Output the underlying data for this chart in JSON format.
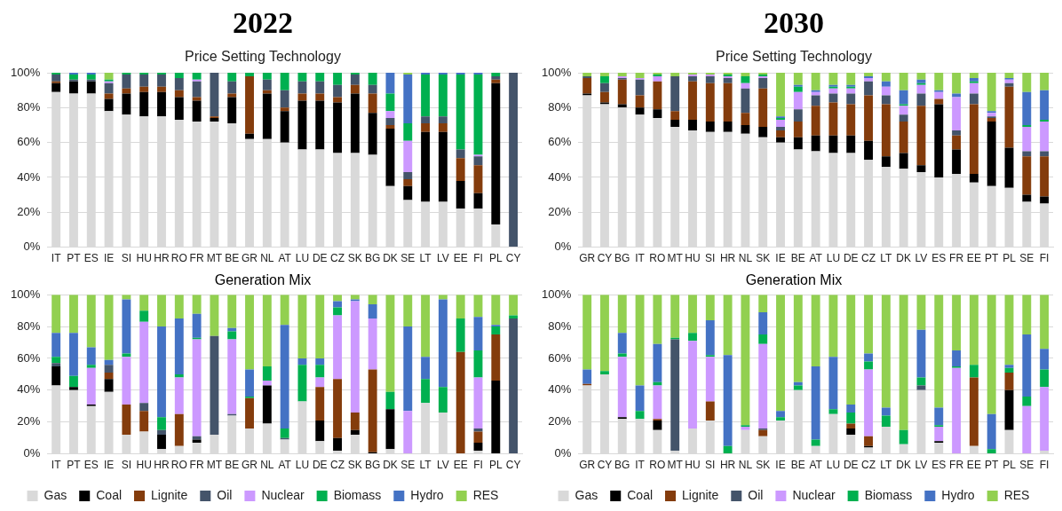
{
  "chart_data": [
    {
      "type": "bar",
      "stacked": true,
      "title": "2022",
      "subtitle": "Price Setting Technology",
      "legend": false,
      "grid": "y",
      "ylim": [
        0,
        100
      ],
      "yticks": [
        {
          "value": 0,
          "label": "0%"
        },
        {
          "value": 20,
          "label": "20%"
        },
        {
          "value": 40,
          "label": "40%"
        },
        {
          "value": 60,
          "label": "60%"
        },
        {
          "value": 80,
          "label": "80%"
        },
        {
          "value": 100,
          "label": "100%"
        }
      ],
      "categories": [
        "IT",
        "PT",
        "ES",
        "IE",
        "SI",
        "HU",
        "HR",
        "RO",
        "FR",
        "MT",
        "BE",
        "GR",
        "NL",
        "AT",
        "LU",
        "DE",
        "CZ",
        "SK",
        "BG",
        "DK",
        "SE",
        "LT",
        "LV",
        "EE",
        "FI",
        "PL",
        "CY"
      ],
      "series": [
        {
          "color": "#d9d9d9",
          "values": [
            89,
            88,
            88,
            78,
            76,
            75,
            75,
            73,
            72,
            72,
            71,
            62,
            62,
            60,
            56,
            56,
            54,
            54,
            53,
            35,
            27,
            26,
            26,
            22,
            22,
            13,
            0
          ]
        },
        {
          "color": "#000000",
          "values": [
            5,
            7,
            7,
            7,
            12,
            14,
            14,
            13,
            12,
            2,
            15,
            3,
            26,
            18,
            28,
            28,
            29,
            34,
            24,
            33,
            8,
            40,
            40,
            16,
            9,
            81,
            0
          ]
        },
        {
          "color": "#843c0c",
          "values": [
            1,
            0,
            0,
            3,
            3,
            3,
            3,
            4,
            2,
            1,
            2,
            33,
            2,
            2,
            4,
            4,
            3,
            5,
            11,
            2,
            4,
            5,
            5,
            13,
            16,
            2,
            0
          ]
        },
        {
          "color": "#44546a",
          "values": [
            4,
            1,
            1,
            6,
            8,
            7,
            7,
            7,
            9,
            25,
            7,
            0,
            6,
            10,
            7,
            7,
            7,
            6,
            5,
            4,
            4,
            4,
            4,
            5,
            5,
            2,
            100
          ]
        },
        {
          "color": "#cc99ff",
          "values": [
            0,
            0,
            0,
            1,
            0,
            0,
            0,
            0,
            1,
            0,
            0,
            0,
            0,
            0,
            0,
            0,
            0,
            0,
            0,
            4,
            18,
            0,
            0,
            0,
            1,
            0,
            0
          ]
        },
        {
          "color": "#00b050",
          "values": [
            1,
            3,
            3,
            1,
            1,
            1,
            1,
            3,
            4,
            0,
            5,
            2,
            4,
            10,
            5,
            5,
            7,
            1,
            7,
            10,
            10,
            24,
            24,
            43,
            46,
            2,
            0
          ]
        },
        {
          "color": "#4472c4",
          "values": [
            0,
            1,
            1,
            0,
            0,
            0,
            0,
            0,
            0,
            0,
            0,
            0,
            0,
            0,
            0,
            0,
            0,
            0,
            0,
            12,
            28,
            1,
            1,
            1,
            1,
            0,
            0
          ]
        },
        {
          "color": "#92d050",
          "values": [
            0,
            0,
            0,
            4,
            0,
            0,
            0,
            0,
            0,
            0,
            0,
            0,
            0,
            0,
            0,
            0,
            0,
            0,
            0,
            0,
            1,
            0,
            0,
            0,
            0,
            0,
            0
          ]
        }
      ]
    },
    {
      "type": "bar",
      "stacked": true,
      "title": "2030",
      "subtitle": "Price Setting Technology",
      "legend": false,
      "grid": "y",
      "ylim": [
        0,
        100
      ],
      "yticks": [
        {
          "value": 0,
          "label": "0%"
        },
        {
          "value": 20,
          "label": "20%"
        },
        {
          "value": 40,
          "label": "40%"
        },
        {
          "value": 60,
          "label": "60%"
        },
        {
          "value": 80,
          "label": "80%"
        },
        {
          "value": 100,
          "label": "100%"
        }
      ],
      "categories": [
        "GR",
        "CY",
        "BG",
        "IT",
        "RO",
        "MT",
        "HU",
        "SI",
        "HR",
        "NL",
        "SK",
        "IE",
        "BE",
        "AT",
        "LU",
        "DE",
        "CZ",
        "LT",
        "DK",
        "LV",
        "ES",
        "FR",
        "EE",
        "PT",
        "PL",
        "SE",
        "FI"
      ],
      "series": [
        {
          "color": "#d9d9d9",
          "values": [
            87,
            82,
            80,
            76,
            74,
            69,
            67,
            66,
            66,
            65,
            63,
            60,
            56,
            55,
            54,
            54,
            50,
            46,
            45,
            43,
            40,
            42,
            37,
            35,
            34,
            26,
            25
          ]
        },
        {
          "color": "#000000",
          "values": [
            1,
            1,
            2,
            4,
            5,
            4,
            6,
            6,
            6,
            5,
            6,
            3,
            7,
            9,
            10,
            10,
            11,
            6,
            9,
            4,
            42,
            14,
            5,
            37,
            23,
            4,
            4
          ]
        },
        {
          "color": "#843c0c",
          "values": [
            9,
            6,
            14,
            7,
            16,
            5,
            22,
            22,
            22,
            7,
            22,
            4,
            9,
            17,
            19,
            18,
            26,
            30,
            18,
            34,
            3,
            8,
            40,
            2,
            35,
            22,
            23
          ]
        },
        {
          "color": "#44546a",
          "values": [
            1,
            5,
            1,
            9,
            0,
            20,
            3,
            4,
            3,
            14,
            6,
            2,
            7,
            6,
            5,
            6,
            8,
            5,
            4,
            7,
            0,
            3,
            6,
            1,
            2,
            3,
            3
          ]
        },
        {
          "color": "#cc99ff",
          "values": [
            0,
            0,
            1,
            1,
            3,
            0,
            1,
            1,
            1,
            3,
            1,
            4,
            10,
            2,
            3,
            3,
            2,
            5,
            5,
            5,
            4,
            19,
            6,
            2,
            2,
            14,
            17
          ]
        },
        {
          "color": "#00b050",
          "values": [
            0,
            4,
            0,
            0,
            1,
            0,
            0,
            0,
            1,
            4,
            1,
            1,
            3,
            0,
            1,
            1,
            0,
            0,
            1,
            1,
            0,
            0,
            1,
            0,
            0,
            1,
            1
          ]
        },
        {
          "color": "#4472c4",
          "values": [
            0,
            0,
            0,
            0,
            0,
            0,
            0,
            0,
            0,
            0,
            0,
            1,
            1,
            1,
            1,
            1,
            1,
            3,
            8,
            2,
            1,
            2,
            2,
            1,
            1,
            19,
            17
          ]
        },
        {
          "color": "#92d050",
          "values": [
            2,
            2,
            2,
            3,
            1,
            2,
            1,
            1,
            1,
            2,
            1,
            25,
            7,
            10,
            7,
            7,
            2,
            5,
            10,
            4,
            10,
            12,
            3,
            22,
            3,
            11,
            10
          ]
        }
      ]
    },
    {
      "type": "bar",
      "stacked": true,
      "title": "Generation Mix",
      "legend": "bottom",
      "grid": "y",
      "ylim": [
        0,
        100
      ],
      "yticks": [
        {
          "value": 0,
          "label": "0%"
        },
        {
          "value": 20,
          "label": "20%"
        },
        {
          "value": 40,
          "label": "40%"
        },
        {
          "value": 60,
          "label": "60%"
        },
        {
          "value": 80,
          "label": "80%"
        },
        {
          "value": 100,
          "label": "100%"
        }
      ],
      "categories": [
        "IT",
        "PT",
        "ES",
        "IE",
        "SI",
        "HU",
        "HR",
        "RO",
        "FR",
        "MT",
        "BE",
        "GR",
        "NL",
        "AT",
        "LU",
        "DE",
        "CZ",
        "SK",
        "BG",
        "DK",
        "SE",
        "LT",
        "LV",
        "EE",
        "FI",
        "PL",
        "CY"
      ],
      "series": [
        {
          "name": "Gas",
          "color": "#d9d9d9",
          "values": [
            43,
            40,
            30,
            39,
            12,
            14,
            3,
            5,
            7,
            12,
            24,
            16,
            19,
            9,
            33,
            8,
            2,
            12,
            0,
            3,
            0,
            32,
            26,
            0,
            2,
            0,
            0
          ]
        },
        {
          "name": "Coal",
          "color": "#000000",
          "values": [
            12,
            2,
            1,
            8,
            0,
            0,
            9,
            0,
            2,
            0,
            0,
            0,
            24,
            0,
            0,
            13,
            8,
            3,
            1,
            25,
            0,
            0,
            0,
            0,
            5,
            46,
            0
          ]
        },
        {
          "name": "Lignite",
          "color": "#843c0c",
          "values": [
            0,
            0,
            0,
            4,
            19,
            13,
            0,
            20,
            0,
            0,
            0,
            19,
            0,
            0,
            0,
            21,
            37,
            11,
            52,
            0,
            0,
            0,
            0,
            64,
            7,
            29,
            0
          ]
        },
        {
          "name": "Oil",
          "color": "#44546a",
          "values": [
            2,
            0,
            0,
            5,
            0,
            5,
            3,
            0,
            2,
            62,
            1,
            0,
            0,
            1,
            0,
            0,
            0,
            0,
            0,
            0,
            0,
            0,
            0,
            0,
            2,
            0,
            85
          ]
        },
        {
          "name": "Nuclear",
          "color": "#cc99ff",
          "values": [
            0,
            0,
            23,
            0,
            30,
            51,
            0,
            23,
            61,
            0,
            47,
            0,
            3,
            0,
            0,
            6,
            40,
            70,
            32,
            0,
            27,
            0,
            0,
            0,
            32,
            0,
            0
          ]
        },
        {
          "name": "Biomass",
          "color": "#00b050",
          "values": [
            4,
            7,
            2,
            0,
            2,
            7,
            8,
            2,
            1,
            0,
            5,
            1,
            9,
            6,
            23,
            8,
            5,
            0,
            0,
            11,
            0,
            15,
            16,
            21,
            17,
            5,
            2
          ]
        },
        {
          "name": "Hydro",
          "color": "#4472c4",
          "values": [
            15,
            27,
            11,
            3,
            34,
            0,
            57,
            35,
            15,
            0,
            2,
            17,
            0,
            65,
            4,
            4,
            4,
            1,
            9,
            0,
            53,
            14,
            55,
            0,
            21,
            1,
            0
          ]
        },
        {
          "name": "RES",
          "color": "#92d050",
          "values": [
            24,
            24,
            33,
            41,
            3,
            10,
            20,
            15,
            12,
            26,
            21,
            47,
            45,
            19,
            40,
            40,
            4,
            3,
            6,
            61,
            20,
            39,
            3,
            15,
            14,
            19,
            13
          ]
        }
      ]
    },
    {
      "type": "bar",
      "stacked": true,
      "title": "Generation Mix",
      "legend": "bottom",
      "grid": "y",
      "ylim": [
        0,
        100
      ],
      "yticks": [
        {
          "value": 0,
          "label": "0%"
        },
        {
          "value": 20,
          "label": "20%"
        },
        {
          "value": 40,
          "label": "40%"
        },
        {
          "value": 60,
          "label": "60%"
        },
        {
          "value": 80,
          "label": "80%"
        },
        {
          "value": 100,
          "label": "100%"
        }
      ],
      "categories": [
        "GR",
        "CY",
        "BG",
        "IT",
        "RO",
        "MT",
        "HU",
        "SI",
        "HR",
        "NL",
        "SK",
        "IE",
        "BE",
        "AT",
        "LU",
        "DE",
        "CZ",
        "LT",
        "DK",
        "LV",
        "ES",
        "FR",
        "EE",
        "PT",
        "PL",
        "SE",
        "FI"
      ],
      "series": [
        {
          "name": "Gas",
          "color": "#d9d9d9",
          "values": [
            43,
            50,
            22,
            22,
            15,
            2,
            16,
            21,
            0,
            15,
            11,
            21,
            40,
            5,
            25,
            12,
            4,
            17,
            6,
            40,
            7,
            0,
            5,
            0,
            15,
            0,
            2
          ]
        },
        {
          "name": "Coal",
          "color": "#000000",
          "values": [
            0,
            0,
            1,
            0,
            6,
            0,
            0,
            0,
            0,
            0,
            0,
            0,
            0,
            0,
            0,
            4,
            1,
            0,
            0,
            0,
            1,
            0,
            0,
            0,
            25,
            0,
            0
          ]
        },
        {
          "name": "Lignite",
          "color": "#843c0c",
          "values": [
            1,
            0,
            0,
            0,
            1,
            0,
            0,
            12,
            0,
            0,
            4,
            0,
            0,
            0,
            0,
            3,
            6,
            0,
            0,
            0,
            0,
            0,
            43,
            0,
            11,
            0,
            0
          ]
        },
        {
          "name": "Oil",
          "color": "#44546a",
          "values": [
            0,
            0,
            0,
            0,
            0,
            70,
            0,
            0,
            0,
            0,
            1,
            0,
            0,
            0,
            0,
            0,
            0,
            0,
            0,
            3,
            0,
            0,
            0,
            0,
            0,
            0,
            0
          ]
        },
        {
          "name": "Nuclear",
          "color": "#cc99ff",
          "values": [
            0,
            0,
            38,
            0,
            21,
            0,
            55,
            28,
            0,
            2,
            53,
            0,
            0,
            0,
            0,
            0,
            42,
            0,
            0,
            0,
            9,
            54,
            0,
            0,
            0,
            30,
            40
          ]
        },
        {
          "name": "Biomass",
          "color": "#00b050",
          "values": [
            0,
            2,
            2,
            5,
            2,
            1,
            5,
            1,
            5,
            1,
            6,
            2,
            3,
            4,
            3,
            7,
            5,
            7,
            9,
            5,
            1,
            1,
            8,
            3,
            3,
            6,
            11
          ]
        },
        {
          "name": "Hydro",
          "color": "#4472c4",
          "values": [
            9,
            0,
            13,
            16,
            24,
            0,
            0,
            22,
            57,
            0,
            14,
            4,
            2,
            46,
            33,
            5,
            5,
            5,
            0,
            30,
            11,
            10,
            0,
            22,
            2,
            39,
            13
          ]
        },
        {
          "name": "RES",
          "color": "#92d050",
          "values": [
            47,
            48,
            24,
            57,
            31,
            27,
            24,
            16,
            38,
            82,
            11,
            73,
            55,
            45,
            39,
            69,
            37,
            71,
            85,
            22,
            71,
            35,
            44,
            75,
            44,
            25,
            34
          ]
        }
      ]
    }
  ]
}
